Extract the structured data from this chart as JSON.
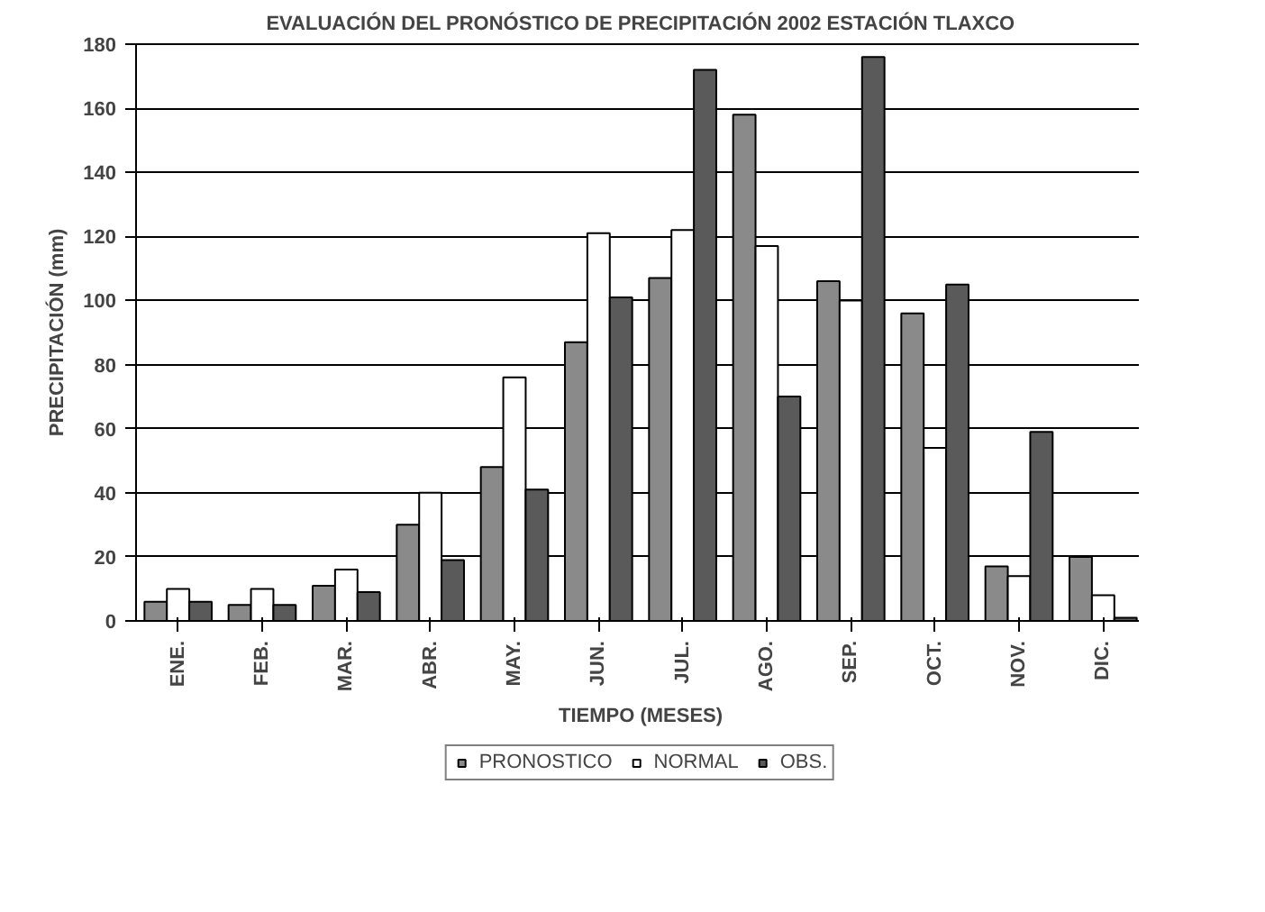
{
  "chart_data": {
    "type": "bar",
    "title": "EVALUACIÓN DEL PRONÓSTICO DE PRECIPITACIÓN 2002 ESTACIÓN TLAXCO",
    "xlabel": "TIEMPO (MESES)",
    "ylabel": "PRECIPITACIÓN (mm)",
    "categories": [
      "ENE.",
      "FEB.",
      "MAR.",
      "ABR.",
      "MAY.",
      "JUN.",
      "JUL.",
      "AGO.",
      "SEP.",
      "OCT.",
      "NOV.",
      "DIC."
    ],
    "series": [
      {
        "name": "PRONOSTICO",
        "color": "#8a8a8a",
        "values": [
          6,
          5,
          11,
          30,
          48,
          87,
          107,
          158,
          106,
          96,
          17,
          20
        ]
      },
      {
        "name": "NORMAL",
        "color": "#ffffff",
        "values": [
          10,
          10,
          16,
          40,
          76,
          121,
          122,
          117,
          100,
          54,
          14,
          8
        ]
      },
      {
        "name": "OBS.",
        "color": "#5a5a5a",
        "values": [
          6,
          5,
          9,
          19,
          41,
          101,
          172,
          70,
          176,
          105,
          59,
          1
        ]
      }
    ],
    "ylim": [
      0,
      180
    ],
    "yticks": [
      0,
      20,
      40,
      60,
      80,
      100,
      120,
      140,
      160,
      180
    ],
    "grid": "y",
    "legend": "bottom"
  }
}
